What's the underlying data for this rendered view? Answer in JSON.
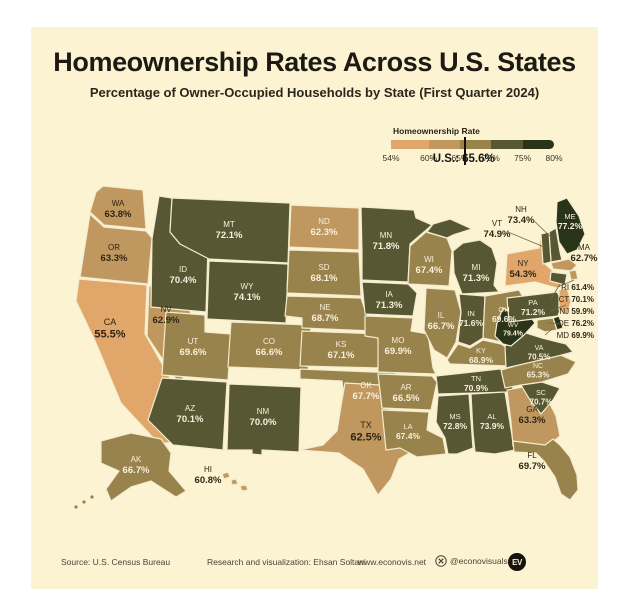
{
  "header": {
    "title": "Homeownership Rates Across U.S. States",
    "subtitle": "Percentage of Owner-Occupied Households by State (First Quarter 2024)"
  },
  "legend": {
    "title": "Homeownership Rate",
    "ticks": [
      "54%",
      "60%",
      "65%",
      "70%",
      "75%",
      "80%"
    ],
    "range": [
      54,
      80
    ],
    "us_label": "U.S.: 65.6%",
    "us_value": 65.6,
    "colors": [
      "#e1a76a",
      "#c0985f",
      "#99834d",
      "#585734",
      "#2a3419"
    ]
  },
  "colors": {
    "page_bg": "#ffffff",
    "poster_bg": "#fbf3d1",
    "title_text": "#1d1a13",
    "dark_label": "#2f2514",
    "light_label": "#f7f0da",
    "border": "#f4ecce",
    "leader": "#6f6449",
    "footer_text": "#4b4335",
    "logo_bg": "#15130e"
  },
  "chart_data": {
    "type": "choropleth",
    "unit": "%",
    "bins": [
      [
        54,
        60
      ],
      [
        60,
        65
      ],
      [
        65,
        70
      ],
      [
        70,
        75
      ],
      [
        75,
        80
      ]
    ],
    "us_average": 65.6,
    "states": [
      {
        "abbr": "WA",
        "value": 63.8
      },
      {
        "abbr": "OR",
        "value": 63.3
      },
      {
        "abbr": "CA",
        "value": 55.5
      },
      {
        "abbr": "NV",
        "value": 62.9
      },
      {
        "abbr": "ID",
        "value": 70.4
      },
      {
        "abbr": "MT",
        "value": 72.1
      },
      {
        "abbr": "WY",
        "value": 74.1
      },
      {
        "abbr": "UT",
        "value": 69.6
      },
      {
        "abbr": "CO",
        "value": 66.6
      },
      {
        "abbr": "AZ",
        "value": 70.1
      },
      {
        "abbr": "NM",
        "value": 70.0
      },
      {
        "abbr": "ND",
        "value": 62.3,
        "force_light": true
      },
      {
        "abbr": "SD",
        "value": 68.1
      },
      {
        "abbr": "NE",
        "value": 68.7
      },
      {
        "abbr": "KS",
        "value": 67.1
      },
      {
        "abbr": "OK",
        "value": 67.7
      },
      {
        "abbr": "TX",
        "value": 62.5
      },
      {
        "abbr": "MN",
        "value": 71.8
      },
      {
        "abbr": "IA",
        "value": 71.3
      },
      {
        "abbr": "MO",
        "value": 69.9
      },
      {
        "abbr": "WI",
        "value": 67.4
      },
      {
        "abbr": "IL",
        "value": 66.7
      },
      {
        "abbr": "IN",
        "value": 71.6
      },
      {
        "abbr": "MI",
        "value": 71.3
      },
      {
        "abbr": "OH",
        "value": 69.6
      },
      {
        "abbr": "KY",
        "value": 68.9
      },
      {
        "abbr": "TN",
        "value": 70.9
      },
      {
        "abbr": "AR",
        "value": 66.5
      },
      {
        "abbr": "LA",
        "value": 67.4
      },
      {
        "abbr": "MS",
        "value": 72.8
      },
      {
        "abbr": "AL",
        "value": 73.9
      },
      {
        "abbr": "GA",
        "value": 63.3
      },
      {
        "abbr": "FL",
        "value": 69.7
      },
      {
        "abbr": "SC",
        "value": 70.7
      },
      {
        "abbr": "NC",
        "value": 65.3
      },
      {
        "abbr": "VA",
        "value": 70.5
      },
      {
        "abbr": "WV",
        "value": 79.4
      },
      {
        "abbr": "PA",
        "value": 71.2
      },
      {
        "abbr": "NY",
        "value": 54.3
      },
      {
        "abbr": "ME",
        "value": 77.2
      },
      {
        "abbr": "NH",
        "value": 73.4
      },
      {
        "abbr": "VT",
        "value": 74.9
      },
      {
        "abbr": "MA",
        "value": 62.7
      },
      {
        "abbr": "RI",
        "value": 61.4
      },
      {
        "abbr": "CT",
        "value": 70.1
      },
      {
        "abbr": "NJ",
        "value": 59.9
      },
      {
        "abbr": "DE",
        "value": 76.2
      },
      {
        "abbr": "MD",
        "value": 69.9
      },
      {
        "abbr": "AK",
        "value": 66.7
      },
      {
        "abbr": "HI",
        "value": 60.8
      }
    ]
  },
  "footer": {
    "source": "Source: U.S. Census Bureau",
    "credit": "Research and visualization: Ehsan Soltani",
    "website": "www.econovis.net",
    "social": "@econovisuals",
    "logo_text": "EV"
  }
}
